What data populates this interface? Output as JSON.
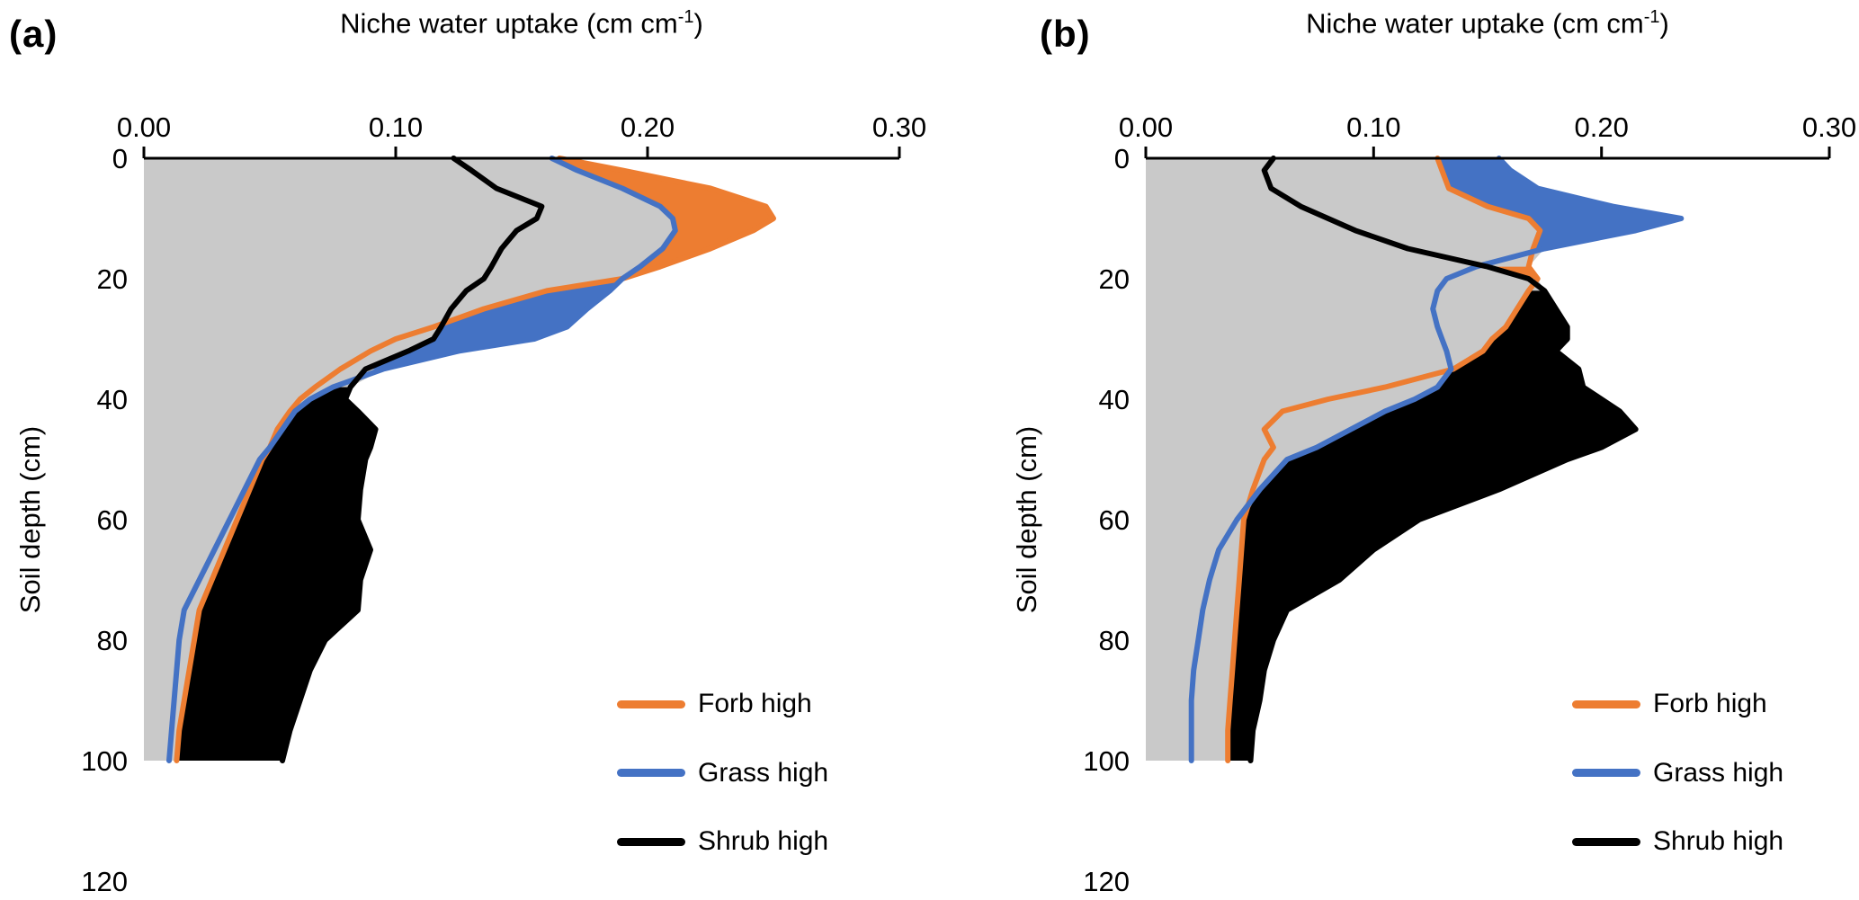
{
  "figure": {
    "x_axis_title_main": "Niche water uptake (cm cm",
    "x_axis_title_sup": "-1",
    "x_axis_title_close": ")",
    "y_axis_title": "Soil depth (cm)"
  },
  "chart_data": [
    {
      "type": "area",
      "panel_label": "(a)",
      "title": "",
      "xlabel": "Niche water uptake (cm cm⁻¹)",
      "ylabel": "Soil depth (cm)",
      "x_axis_position": "top",
      "y_inverted": true,
      "xlim": [
        0,
        0.3
      ],
      "ylim": [
        0,
        120
      ],
      "x_ticks": [
        0,
        0.1,
        0.2,
        0.3
      ],
      "x_tick_labels": [
        "0.00",
        "0.10",
        "0.20",
        "0.30"
      ],
      "y_ticks": [
        0,
        20,
        40,
        60,
        80,
        100,
        120
      ],
      "grid": false,
      "background_fill": "#C9C9C9",
      "legend_position": "inside-lower-right",
      "depths_cm": [
        0,
        2,
        5,
        8,
        10,
        12,
        15,
        18,
        20,
        22,
        25,
        28,
        30,
        32,
        35,
        38,
        40,
        42,
        45,
        48,
        50,
        55,
        60,
        65,
        70,
        75,
        80,
        85,
        90,
        95,
        100
      ],
      "series": [
        {
          "name": "Forb high",
          "color": "#ED7D31",
          "values": [
            0.165,
            0.19,
            0.225,
            0.247,
            0.25,
            0.242,
            0.225,
            0.205,
            0.19,
            0.16,
            0.135,
            0.115,
            0.1,
            0.09,
            0.078,
            0.068,
            0.062,
            0.058,
            0.053,
            0.05,
            0.047,
            0.042,
            0.037,
            0.032,
            0.027,
            0.022,
            0.02,
            0.018,
            0.016,
            0.014,
            0.013
          ]
        },
        {
          "name": "Grass high",
          "color": "#4472C4",
          "values": [
            0.162,
            0.172,
            0.19,
            0.205,
            0.21,
            0.211,
            0.206,
            0.197,
            0.19,
            0.185,
            0.176,
            0.168,
            0.155,
            0.125,
            0.095,
            0.075,
            0.066,
            0.06,
            0.055,
            0.05,
            0.046,
            0.04,
            0.034,
            0.028,
            0.022,
            0.016,
            0.014,
            0.013,
            0.012,
            0.011,
            0.01
          ]
        },
        {
          "name": "Shrub high",
          "color": "#000000",
          "values": [
            0.123,
            0.13,
            0.14,
            0.158,
            0.156,
            0.148,
            0.142,
            0.138,
            0.135,
            0.128,
            0.122,
            0.118,
            0.115,
            0.105,
            0.088,
            0.082,
            0.08,
            0.085,
            0.092,
            0.09,
            0.088,
            0.086,
            0.085,
            0.09,
            0.086,
            0.085,
            0.072,
            0.066,
            0.062,
            0.058,
            0.055
          ]
        }
      ]
    },
    {
      "type": "area",
      "panel_label": "(b)",
      "title": "",
      "xlabel": "Niche water uptake (cm cm⁻¹)",
      "ylabel": "Soil depth (cm)",
      "x_axis_position": "top",
      "y_inverted": true,
      "xlim": [
        0,
        0.3
      ],
      "ylim": [
        0,
        120
      ],
      "x_ticks": [
        0,
        0.1,
        0.2,
        0.3
      ],
      "x_tick_labels": [
        "0.00",
        "0.10",
        "0.20",
        "0.30"
      ],
      "y_ticks": [
        0,
        20,
        40,
        60,
        80,
        100,
        120
      ],
      "grid": false,
      "background_fill": "#C9C9C9",
      "legend_position": "inside-lower-right",
      "depths_cm": [
        0,
        2,
        5,
        8,
        10,
        12,
        15,
        18,
        20,
        22,
        25,
        28,
        30,
        32,
        35,
        38,
        40,
        42,
        45,
        48,
        50,
        55,
        60,
        65,
        70,
        75,
        80,
        85,
        90,
        95,
        100
      ],
      "series": [
        {
          "name": "Forb high",
          "color": "#ED7D31",
          "values": [
            0.128,
            0.13,
            0.133,
            0.15,
            0.168,
            0.173,
            0.17,
            0.168,
            0.172,
            0.168,
            0.163,
            0.158,
            0.152,
            0.148,
            0.135,
            0.105,
            0.08,
            0.06,
            0.052,
            0.056,
            0.052,
            0.047,
            0.043,
            0.042,
            0.041,
            0.04,
            0.039,
            0.038,
            0.037,
            0.036,
            0.036
          ]
        },
        {
          "name": "Grass high",
          "color": "#4472C4",
          "values": [
            0.155,
            0.16,
            0.172,
            0.205,
            0.235,
            0.215,
            0.175,
            0.145,
            0.132,
            0.128,
            0.126,
            0.128,
            0.13,
            0.132,
            0.134,
            0.128,
            0.118,
            0.105,
            0.09,
            0.075,
            0.062,
            0.05,
            0.04,
            0.032,
            0.028,
            0.025,
            0.023,
            0.021,
            0.02,
            0.02,
            0.02
          ]
        },
        {
          "name": "Shrub high",
          "color": "#000000",
          "values": [
            0.056,
            0.052,
            0.055,
            0.068,
            0.08,
            0.092,
            0.115,
            0.15,
            0.168,
            0.175,
            0.18,
            0.185,
            0.185,
            0.18,
            0.19,
            0.192,
            0.2,
            0.208,
            0.215,
            0.2,
            0.185,
            0.155,
            0.12,
            0.1,
            0.085,
            0.062,
            0.056,
            0.052,
            0.05,
            0.047,
            0.046
          ]
        }
      ]
    }
  ]
}
